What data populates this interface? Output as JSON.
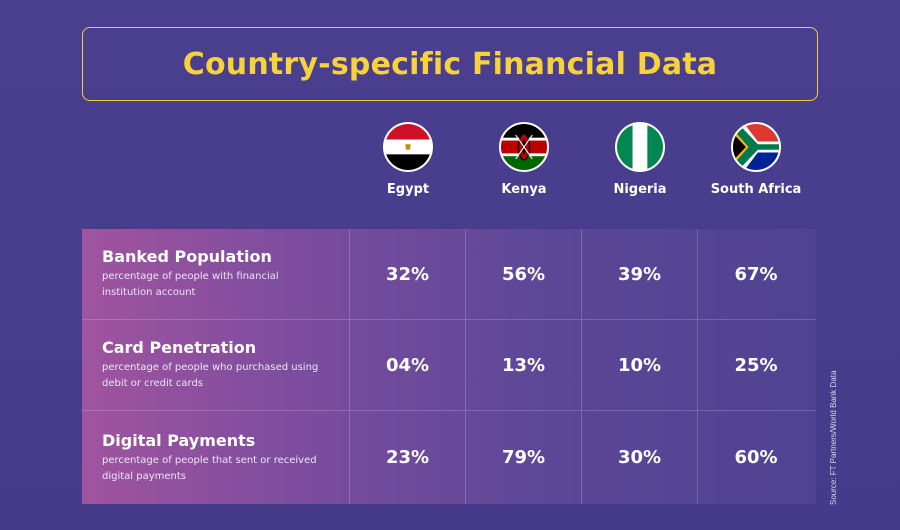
{
  "title": "Country-specific Financial Data",
  "source": "Source: FT Partners/World Bank Data",
  "chart_data": {
    "type": "table",
    "columns": [
      {
        "name": "Egypt",
        "flag_icon": "egypt-flag-icon"
      },
      {
        "name": "Kenya",
        "flag_icon": "kenya-flag-icon"
      },
      {
        "name": "Nigeria",
        "flag_icon": "nigeria-flag-icon"
      },
      {
        "name": "South Africa",
        "flag_icon": "south-africa-flag-icon"
      }
    ],
    "rows": [
      {
        "title": "Banked Population",
        "description": "percentage of people with financial institution account",
        "values": [
          "32%",
          "56%",
          "39%",
          "67%"
        ]
      },
      {
        "title": "Card Penetration",
        "description": "percentage of people who purchased using debit or credit cards",
        "values": [
          "04%",
          "13%",
          "10%",
          "25%"
        ]
      },
      {
        "title": "Digital Payments",
        "description": "percentage of people that sent or received digital payments",
        "values": [
          "23%",
          "79%",
          "30%",
          "60%"
        ]
      }
    ]
  },
  "colors": {
    "background": "#4a3f8f",
    "title": "#f7d23b",
    "row_gradient_start": "#a0549f",
    "row_gradient_end": "#4f4391"
  }
}
